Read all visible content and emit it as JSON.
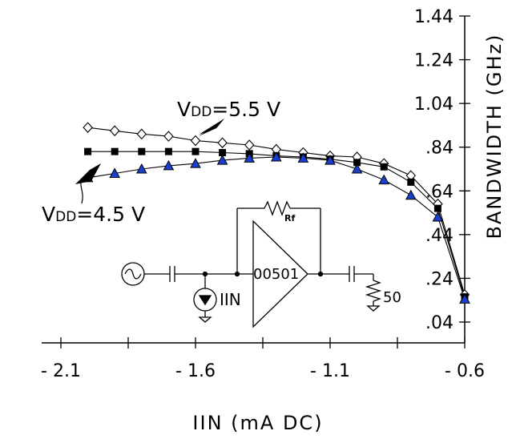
{
  "chart_data": {
    "type": "line",
    "xlabel": "IIN (mA DC)",
    "ylabel": "BANDWIDTH (GHz)",
    "xlim": [
      -2.1,
      -0.6
    ],
    "ylim": [
      0.04,
      1.44
    ],
    "x_ticks": [
      "- 2.1",
      "- 1.6",
      "- 1.1",
      "- 0.6"
    ],
    "y_ticks": [
      "1.44",
      "1.24",
      "1.04",
      ".84",
      ".64",
      ".44",
      ".24",
      ".04"
    ],
    "grid": false,
    "series": [
      {
        "name": "VDD = 5.5 V",
        "marker": "open-diamond",
        "x": [
          -2.0,
          -1.9,
          -1.8,
          -1.7,
          -1.6,
          -1.5,
          -1.4,
          -1.3,
          -1.2,
          -1.1,
          -1.0,
          -0.9,
          -0.8,
          -0.7,
          -0.6
        ],
        "y": [
          0.93,
          0.915,
          0.9,
          0.89,
          0.87,
          0.86,
          0.85,
          0.83,
          0.815,
          0.8,
          0.795,
          0.765,
          0.71,
          0.58,
          0.165
        ]
      },
      {
        "name": "",
        "marker": "filled-square",
        "x": [
          -2.0,
          -1.9,
          -1.8,
          -1.7,
          -1.6,
          -1.5,
          -1.4,
          -1.3,
          -1.2,
          -1.1,
          -1.0,
          -0.9,
          -0.8,
          -0.7,
          -0.6
        ],
        "y": [
          0.82,
          0.82,
          0.82,
          0.82,
          0.82,
          0.815,
          0.81,
          0.8,
          0.795,
          0.785,
          0.77,
          0.75,
          0.68,
          0.56,
          0.155
        ]
      },
      {
        "name": "VDD = 4.5 V",
        "marker": "filled-triangle",
        "x": [
          -2.0,
          -1.9,
          -1.8,
          -1.7,
          -1.6,
          -1.5,
          -1.4,
          -1.3,
          -1.2,
          -1.1,
          -1.0,
          -0.9,
          -0.8,
          -0.7,
          -0.6
        ],
        "y": [
          0.7,
          0.72,
          0.74,
          0.755,
          0.765,
          0.78,
          0.79,
          0.795,
          0.79,
          0.78,
          0.74,
          0.69,
          0.62,
          0.52,
          0.145
        ]
      }
    ],
    "annotations": {
      "vdd_high": {
        "main": "V",
        "sub": "DD",
        "value": "=5.5 V"
      },
      "vdd_low": {
        "main": "V",
        "sub": "DD",
        "value": "=4.5 V"
      }
    },
    "schematic": {
      "amp_label": "00501",
      "feedback_label": "Rf",
      "source_label": "IIN",
      "load_label": "50"
    }
  }
}
